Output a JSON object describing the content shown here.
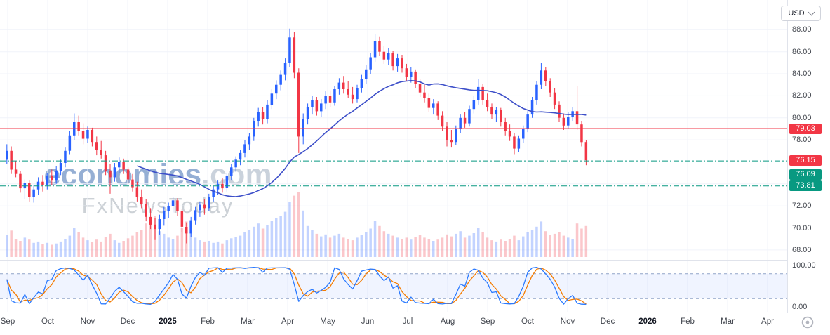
{
  "currency_selector": {
    "label": "USD"
  },
  "watermark": {
    "brand": "economies",
    "brand_suffix": ".com",
    "tagline": "FxNewsToday"
  },
  "price_axis": {
    "min": 67.1,
    "max": 90.7,
    "visible_ticks": [
      88,
      86,
      84,
      82,
      80,
      78,
      72,
      70,
      68
    ],
    "grid_ticks": [
      88,
      86,
      84,
      82,
      80,
      78,
      76,
      74,
      72,
      70,
      68
    ]
  },
  "indicator_axis": {
    "min": 0,
    "max": 100,
    "ticks": [
      100,
      0
    ]
  },
  "time_axis": {
    "labels": [
      {
        "t": "Sep"
      },
      {
        "t": "Oct"
      },
      {
        "t": "Nov"
      },
      {
        "t": "Dec"
      },
      {
        "t": "2025",
        "year": true
      },
      {
        "t": "Feb"
      },
      {
        "t": "Mar"
      },
      {
        "t": "Apr"
      },
      {
        "t": "May"
      },
      {
        "t": "Jun"
      },
      {
        "t": "Jul"
      },
      {
        "t": "Aug"
      },
      {
        "t": "Sep"
      },
      {
        "t": "Oct"
      },
      {
        "t": "Nov"
      },
      {
        "t": "Dec"
      },
      {
        "t": "2026",
        "year": true
      },
      {
        "t": "Feb"
      },
      {
        "t": "Mar"
      },
      {
        "t": "Apr"
      }
    ]
  },
  "chart_data": {
    "type": "candlestick",
    "x_domain": "Sep 2024 - Apr 2026, price data through mid-Nov 2025",
    "visible_price_range": [
      67.1,
      90.7
    ],
    "colors": {
      "up": "#2962ff",
      "down": "#f23645"
    },
    "last_price": {
      "value": 76.15,
      "color": "#f23645"
    },
    "levels": [
      {
        "price": 79.03,
        "color": "#f23645",
        "style": "solid",
        "badge_color": "#f23645"
      },
      {
        "price": 76.09,
        "color": "#089981",
        "style": "dashdot",
        "badge_color": "#089981",
        "badge_dy": 19
      },
      {
        "price": 73.81,
        "color": "#089981",
        "style": "dashdot",
        "badge_color": "#089981"
      }
    ],
    "moving_average": {
      "type": "SMA",
      "window": 30,
      "color": "#3d4fc9"
    },
    "oscillator": {
      "type": "stochastic",
      "k_period": 8,
      "d_period": 3,
      "upper_band": 80,
      "lower_band": 20,
      "range": [
        0,
        100
      ],
      "k_color": "#2979ff",
      "d_color": "#f57c00",
      "band_fill": "rgba(41,98,255,0.07)",
      "band_line": "#8fa3c8"
    },
    "candles": [
      [
        76.2,
        77.6,
        75.8,
        77.0
      ],
      [
        77.0,
        77.4,
        74.9,
        75.3
      ],
      [
        75.3,
        76.1,
        74.6,
        74.9
      ],
      [
        74.9,
        75.2,
        73.2,
        73.6
      ],
      [
        73.6,
        74.4,
        72.6,
        74.1
      ],
      [
        74.1,
        74.3,
        72.4,
        72.8
      ],
      [
        72.8,
        73.9,
        72.3,
        73.5
      ],
      [
        73.5,
        74.6,
        73.0,
        74.2
      ],
      [
        74.2,
        74.8,
        73.3,
        73.9
      ],
      [
        73.9,
        75.0,
        73.5,
        74.7
      ],
      [
        74.7,
        75.3,
        73.9,
        74.3
      ],
      [
        74.3,
        75.6,
        74.0,
        75.2
      ],
      [
        75.2,
        76.2,
        74.8,
        75.9
      ],
      [
        75.9,
        77.3,
        75.5,
        77.0
      ],
      [
        77.0,
        78.8,
        76.7,
        78.4
      ],
      [
        78.4,
        80.4,
        78.0,
        79.6
      ],
      [
        79.6,
        80.2,
        78.4,
        78.8
      ],
      [
        78.8,
        79.5,
        77.6,
        78.1
      ],
      [
        78.1,
        79.2,
        77.7,
        78.9
      ],
      [
        78.9,
        79.1,
        77.4,
        77.8
      ],
      [
        77.8,
        78.3,
        76.6,
        77.1
      ],
      [
        77.1,
        77.9,
        76.3,
        76.6
      ],
      [
        76.6,
        77.0,
        74.8,
        75.2
      ],
      [
        75.2,
        75.8,
        73.1,
        74.6
      ],
      [
        74.6,
        75.9,
        74.2,
        75.5
      ],
      [
        75.5,
        76.4,
        75.0,
        76.0
      ],
      [
        76.0,
        76.3,
        74.9,
        75.3
      ],
      [
        75.3,
        75.5,
        74.0,
        74.4
      ],
      [
        74.4,
        74.9,
        73.3,
        73.7
      ],
      [
        73.7,
        74.2,
        72.4,
        72.8
      ],
      [
        72.8,
        73.5,
        71.8,
        72.2
      ],
      [
        72.2,
        72.6,
        70.6,
        71.0
      ],
      [
        71.0,
        71.8,
        69.9,
        70.3
      ],
      [
        70.3,
        70.9,
        68.9,
        69.9
      ],
      [
        69.9,
        71.2,
        69.4,
        70.8
      ],
      [
        70.8,
        71.9,
        70.2,
        71.5
      ],
      [
        71.5,
        72.3,
        70.9,
        72.0
      ],
      [
        72.0,
        72.8,
        71.4,
        72.5
      ],
      [
        72.5,
        72.7,
        71.1,
        71.5
      ],
      [
        71.5,
        71.7,
        69.6,
        70.1
      ],
      [
        70.1,
        70.5,
        68.6,
        69.5
      ],
      [
        69.5,
        71.0,
        69.2,
        70.7
      ],
      [
        70.7,
        71.9,
        70.3,
        71.6
      ],
      [
        71.6,
        72.4,
        71.0,
        72.1
      ],
      [
        72.1,
        72.6,
        71.2,
        71.8
      ],
      [
        71.8,
        73.1,
        71.5,
        72.8
      ],
      [
        72.8,
        73.8,
        72.4,
        73.5
      ],
      [
        73.5,
        74.3,
        73.0,
        74.0
      ],
      [
        74.0,
        74.5,
        73.2,
        73.6
      ],
      [
        73.6,
        75.0,
        73.3,
        74.7
      ],
      [
        74.7,
        75.8,
        74.3,
        75.5
      ],
      [
        75.5,
        76.5,
        75.1,
        76.2
      ],
      [
        76.2,
        77.1,
        75.7,
        76.8
      ],
      [
        76.8,
        78.0,
        76.4,
        77.6
      ],
      [
        77.6,
        78.6,
        77.1,
        78.3
      ],
      [
        78.3,
        80.0,
        77.9,
        79.7
      ],
      [
        79.7,
        80.9,
        79.2,
        80.5
      ],
      [
        80.5,
        81.0,
        79.4,
        79.9
      ],
      [
        79.9,
        81.6,
        79.5,
        81.2
      ],
      [
        81.2,
        82.6,
        80.8,
        82.2
      ],
      [
        82.2,
        83.4,
        81.7,
        83.0
      ],
      [
        83.0,
        84.3,
        82.5,
        83.9
      ],
      [
        83.9,
        85.4,
        83.4,
        85.0
      ],
      [
        85.0,
        88.1,
        84.6,
        87.3
      ],
      [
        87.3,
        87.8,
        83.6,
        84.1
      ],
      [
        84.1,
        84.5,
        76.8,
        78.3
      ],
      [
        78.3,
        80.4,
        77.6,
        79.9
      ],
      [
        79.9,
        81.3,
        79.4,
        81.0
      ],
      [
        81.0,
        82.0,
        80.3,
        81.6
      ],
      [
        81.6,
        81.9,
        80.2,
        80.6
      ],
      [
        80.6,
        81.7,
        80.1,
        81.3
      ],
      [
        81.3,
        82.4,
        80.8,
        82.0
      ],
      [
        82.0,
        82.5,
        81.0,
        81.4
      ],
      [
        81.4,
        82.9,
        81.1,
        82.6
      ],
      [
        82.6,
        83.6,
        82.1,
        83.2
      ],
      [
        83.2,
        83.8,
        82.2,
        82.6
      ],
      [
        82.6,
        83.3,
        81.8,
        82.1
      ],
      [
        82.1,
        82.8,
        81.3,
        81.7
      ],
      [
        81.7,
        83.0,
        81.4,
        82.7
      ],
      [
        82.7,
        83.9,
        82.3,
        83.5
      ],
      [
        83.5,
        84.8,
        83.1,
        84.4
      ],
      [
        84.4,
        85.9,
        84.0,
        85.5
      ],
      [
        85.5,
        87.6,
        85.1,
        87.0
      ],
      [
        87.0,
        87.4,
        85.6,
        86.0
      ],
      [
        86.0,
        86.5,
        84.9,
        85.3
      ],
      [
        85.3,
        86.3,
        84.8,
        85.9
      ],
      [
        85.9,
        86.1,
        84.3,
        84.7
      ],
      [
        84.7,
        85.8,
        84.2,
        85.4
      ],
      [
        85.4,
        85.7,
        84.1,
        84.5
      ],
      [
        84.5,
        84.9,
        83.3,
        83.7
      ],
      [
        83.7,
        84.6,
        83.2,
        84.2
      ],
      [
        84.2,
        84.4,
        82.7,
        83.1
      ],
      [
        83.1,
        83.5,
        81.9,
        82.3
      ],
      [
        82.3,
        83.0,
        81.4,
        81.8
      ],
      [
        81.8,
        82.2,
        80.5,
        80.9
      ],
      [
        80.9,
        81.7,
        80.3,
        81.3
      ],
      [
        81.3,
        81.5,
        79.8,
        80.2
      ],
      [
        80.2,
        80.6,
        78.8,
        79.2
      ],
      [
        79.2,
        79.6,
        77.4,
        78.0
      ],
      [
        78.0,
        78.9,
        77.3,
        77.8
      ],
      [
        77.8,
        79.3,
        77.5,
        79.0
      ],
      [
        79.0,
        80.3,
        78.6,
        80.0
      ],
      [
        80.0,
        80.5,
        79.1,
        79.5
      ],
      [
        79.5,
        81.1,
        79.2,
        80.8
      ],
      [
        80.8,
        82.0,
        80.4,
        81.6
      ],
      [
        81.6,
        83.5,
        81.2,
        82.8
      ],
      [
        82.8,
        83.1,
        81.2,
        81.6
      ],
      [
        81.6,
        82.2,
        80.6,
        81.0
      ],
      [
        81.0,
        81.3,
        79.9,
        80.3
      ],
      [
        80.3,
        81.0,
        79.6,
        80.7
      ],
      [
        80.7,
        80.9,
        79.2,
        79.6
      ],
      [
        79.6,
        80.0,
        78.4,
        78.8
      ],
      [
        78.8,
        79.4,
        77.9,
        78.3
      ],
      [
        78.3,
        78.6,
        76.7,
        77.2
      ],
      [
        77.2,
        78.4,
        76.9,
        78.1
      ],
      [
        78.1,
        79.3,
        77.7,
        79.0
      ],
      [
        79.0,
        80.6,
        78.7,
        80.3
      ],
      [
        80.3,
        81.9,
        80.0,
        81.6
      ],
      [
        81.6,
        83.3,
        81.2,
        83.0
      ],
      [
        83.0,
        85.0,
        82.6,
        84.3
      ],
      [
        84.3,
        84.6,
        82.9,
        83.3
      ],
      [
        83.3,
        83.6,
        81.9,
        82.3
      ],
      [
        82.3,
        82.7,
        80.8,
        81.2
      ],
      [
        81.2,
        81.5,
        79.6,
        80.0
      ],
      [
        80.0,
        80.4,
        78.9,
        79.3
      ],
      [
        79.3,
        80.5,
        79.0,
        80.1
      ],
      [
        80.1,
        81.0,
        79.7,
        80.6
      ],
      [
        80.6,
        82.9,
        78.9,
        79.4
      ],
      [
        79.4,
        79.7,
        77.4,
        77.8
      ],
      [
        77.8,
        78.0,
        75.7,
        76.15
      ]
    ],
    "volumes": [
      34,
      41,
      28,
      25,
      30,
      27,
      22,
      24,
      20,
      22,
      19,
      21,
      24,
      28,
      33,
      45,
      38,
      30,
      26,
      23,
      27,
      24,
      31,
      36,
      26,
      22,
      25,
      29,
      33,
      38,
      42,
      52,
      58,
      64,
      40,
      36,
      30,
      28,
      33,
      45,
      55,
      38,
      30,
      26,
      24,
      25,
      22,
      24,
      21,
      26,
      29,
      31,
      33,
      38,
      42,
      47,
      52,
      44,
      50,
      56,
      60,
      64,
      70,
      85,
      95,
      100,
      72,
      48,
      42,
      36,
      32,
      35,
      30,
      33,
      36,
      30,
      28,
      26,
      30,
      34,
      38,
      44,
      56,
      48,
      40,
      36,
      33,
      30,
      28,
      30,
      27,
      31,
      34,
      30,
      28,
      25,
      27,
      30,
      35,
      32,
      36,
      40,
      30,
      33,
      37,
      45,
      38,
      30,
      26,
      24,
      27,
      25,
      28,
      33,
      26,
      32,
      38,
      42,
      47,
      55,
      40,
      34,
      36,
      38,
      33,
      30,
      28,
      52,
      44,
      48
    ]
  }
}
